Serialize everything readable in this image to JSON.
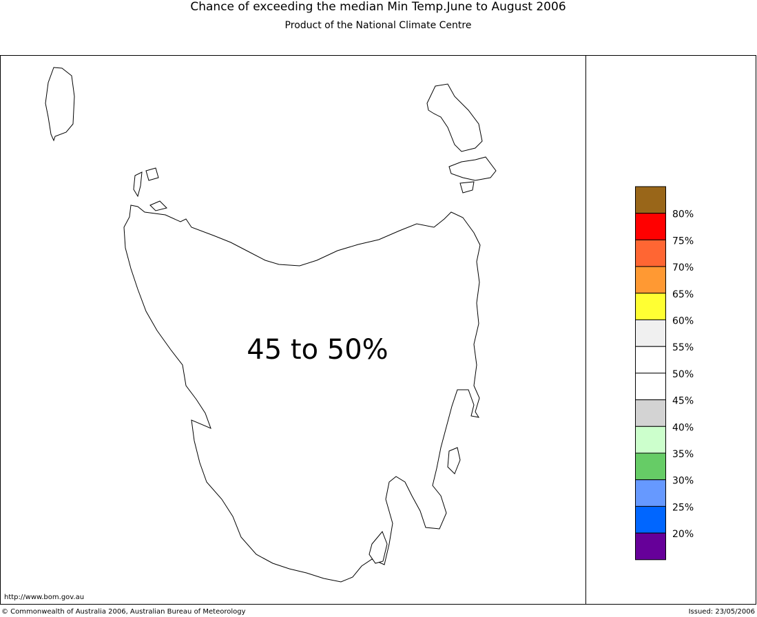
{
  "header": {
    "title": "Chance of exceeding the median Min Temp.June to August 2006",
    "subtitle": "Product of the National Climate Centre"
  },
  "map": {
    "label": "45 to 50%"
  },
  "legend": {
    "colors": [
      "#996619",
      "#ff0000",
      "#ff6633",
      "#ff9933",
      "#ffff33",
      "#f0f0f0",
      "#ffffff",
      "#ffffff",
      "#d3d3d3",
      "#ccffcc",
      "#66cc66",
      "#6699ff",
      "#0066ff",
      "#660099"
    ],
    "labels": [
      "80%",
      "75%",
      "70%",
      "65%",
      "60%",
      "55%",
      "50%",
      "45%",
      "40%",
      "35%",
      "30%",
      "25%",
      "20%"
    ]
  },
  "footer": {
    "url": "http://www.bom.gov.au",
    "copyright": "© Commonwealth of Australia 2006, Australian Bureau of Meteorology",
    "issued": "Issued: 23/05/2006"
  }
}
